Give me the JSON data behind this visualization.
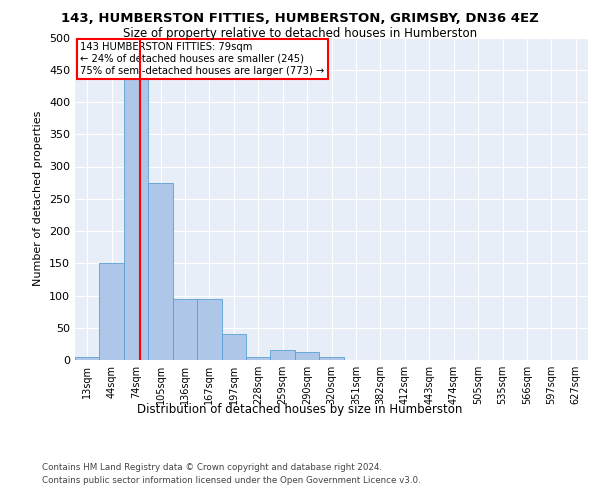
{
  "title_line1": "143, HUMBERSTON FITTIES, HUMBERSTON, GRIMSBY, DN36 4EZ",
  "title_line2": "Size of property relative to detached houses in Humberston",
  "xlabel": "Distribution of detached houses by size in Humberston",
  "ylabel": "Number of detached properties",
  "footer_line1": "Contains HM Land Registry data © Crown copyright and database right 2024.",
  "footer_line2": "Contains public sector information licensed under the Open Government Licence v3.0.",
  "bin_labels": [
    "13sqm",
    "44sqm",
    "74sqm",
    "105sqm",
    "136sqm",
    "167sqm",
    "197sqm",
    "228sqm",
    "259sqm",
    "290sqm",
    "320sqm",
    "351sqm",
    "382sqm",
    "412sqm",
    "443sqm",
    "474sqm",
    "505sqm",
    "535sqm",
    "566sqm",
    "597sqm",
    "627sqm"
  ],
  "bar_values": [
    5,
    150,
    470,
    275,
    95,
    95,
    40,
    5,
    15,
    12,
    5,
    0,
    0,
    0,
    0,
    0,
    0,
    0,
    0,
    0,
    0
  ],
  "bar_color": "#aec6e8",
  "bar_edge_color": "#5a9fd4",
  "red_line_x": 2.16,
  "annotation_text_line1": "143 HUMBERSTON FITTIES: 79sqm",
  "annotation_text_line2": "← 24% of detached houses are smaller (245)",
  "annotation_text_line3": "75% of semi-detached houses are larger (773) →",
  "ylim_max": 500,
  "yticks": [
    0,
    50,
    100,
    150,
    200,
    250,
    300,
    350,
    400,
    450,
    500
  ],
  "plot_bg_color": "#e8eef7"
}
